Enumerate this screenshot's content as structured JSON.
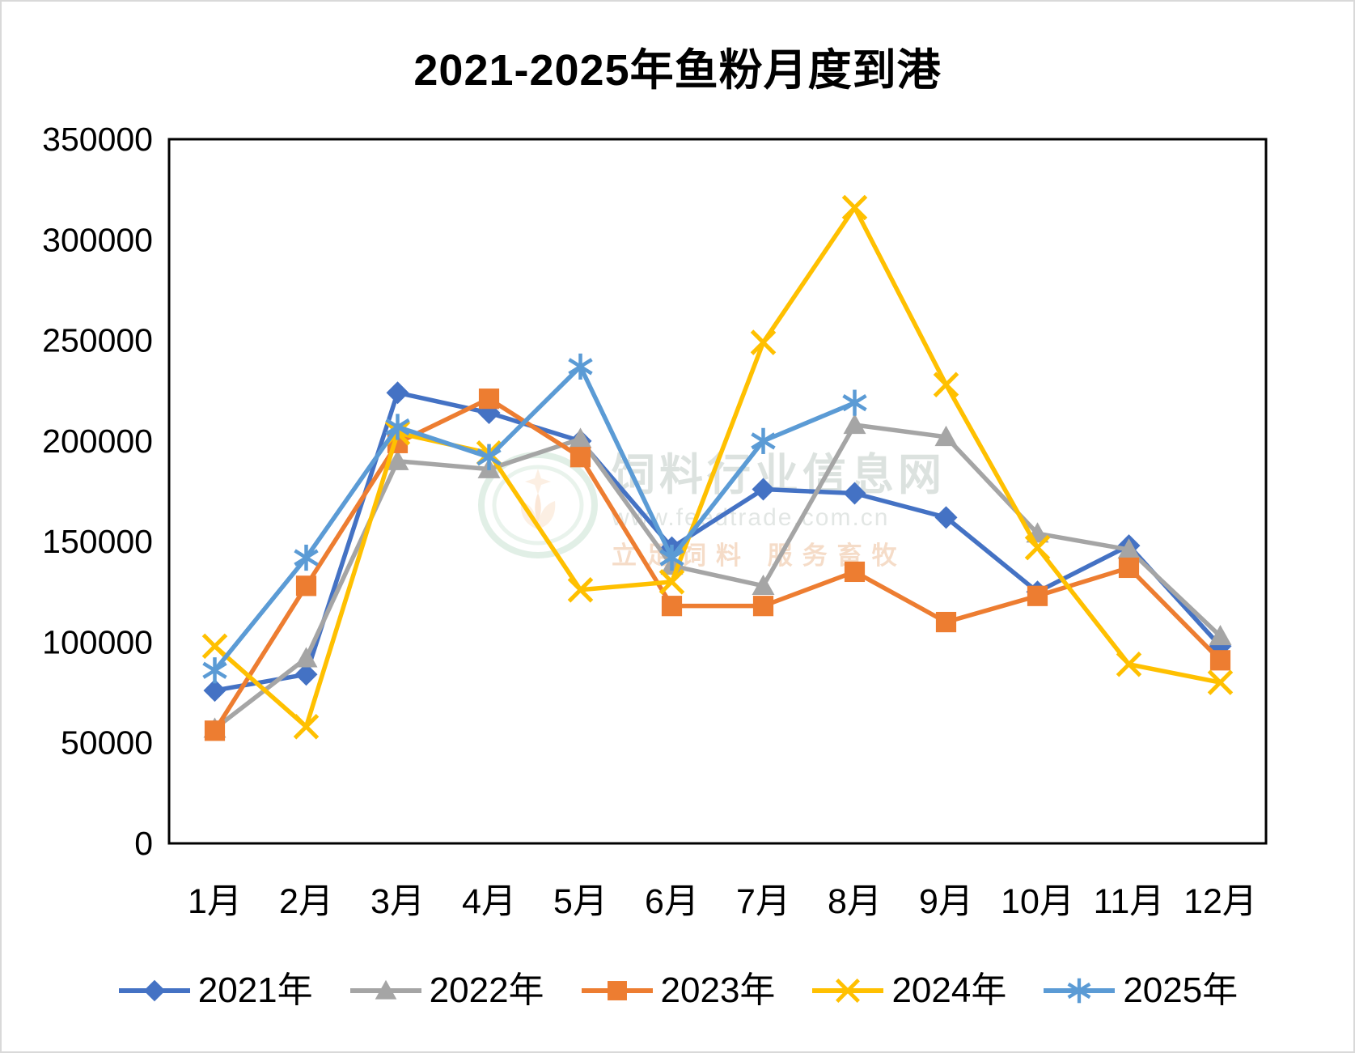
{
  "title": "2021-2025年鱼粉月度到港",
  "watermark": {
    "site_name": "饲料行业信息网",
    "site_url": "www.feedtrade.com.cn",
    "slogan": "立足饲料 服务畜牧"
  },
  "chart_data": {
    "type": "line",
    "title": "2021-2025年鱼粉月度到港",
    "categories": [
      "1月",
      "2月",
      "3月",
      "4月",
      "5月",
      "6月",
      "7月",
      "8月",
      "9月",
      "10月",
      "11月",
      "12月"
    ],
    "series": [
      {
        "name": "2021年",
        "color": "#4472C4",
        "marker": "diamond",
        "values": [
          76000,
          84000,
          224000,
          214000,
          200000,
          147000,
          176000,
          174000,
          162000,
          125000,
          148000,
          98000
        ]
      },
      {
        "name": "2022年",
        "color": "#A5A5A5",
        "marker": "triangle",
        "values": [
          57000,
          92000,
          190000,
          186000,
          201000,
          138000,
          128000,
          208000,
          202000,
          154000,
          146000,
          103000
        ]
      },
      {
        "name": "2023年",
        "color": "#ED7D31",
        "marker": "square",
        "values": [
          56000,
          128000,
          199000,
          221000,
          192000,
          118000,
          118000,
          135000,
          110000,
          123000,
          137000,
          91000
        ]
      },
      {
        "name": "2024年",
        "color": "#FFC000",
        "marker": "x",
        "values": [
          98000,
          58000,
          204000,
          194000,
          126000,
          130000,
          249000,
          316000,
          228000,
          147000,
          89000,
          80000
        ]
      },
      {
        "name": "2025年",
        "color": "#5B9BD5",
        "marker": "asterisk",
        "values": [
          86000,
          142000,
          207000,
          192000,
          237000,
          142000,
          200000,
          219000
        ]
      }
    ],
    "xlabel": "",
    "ylabel": "",
    "ylim": [
      0,
      350000
    ],
    "ytick_step": 50000,
    "grid": false,
    "legend_position": "bottom"
  }
}
